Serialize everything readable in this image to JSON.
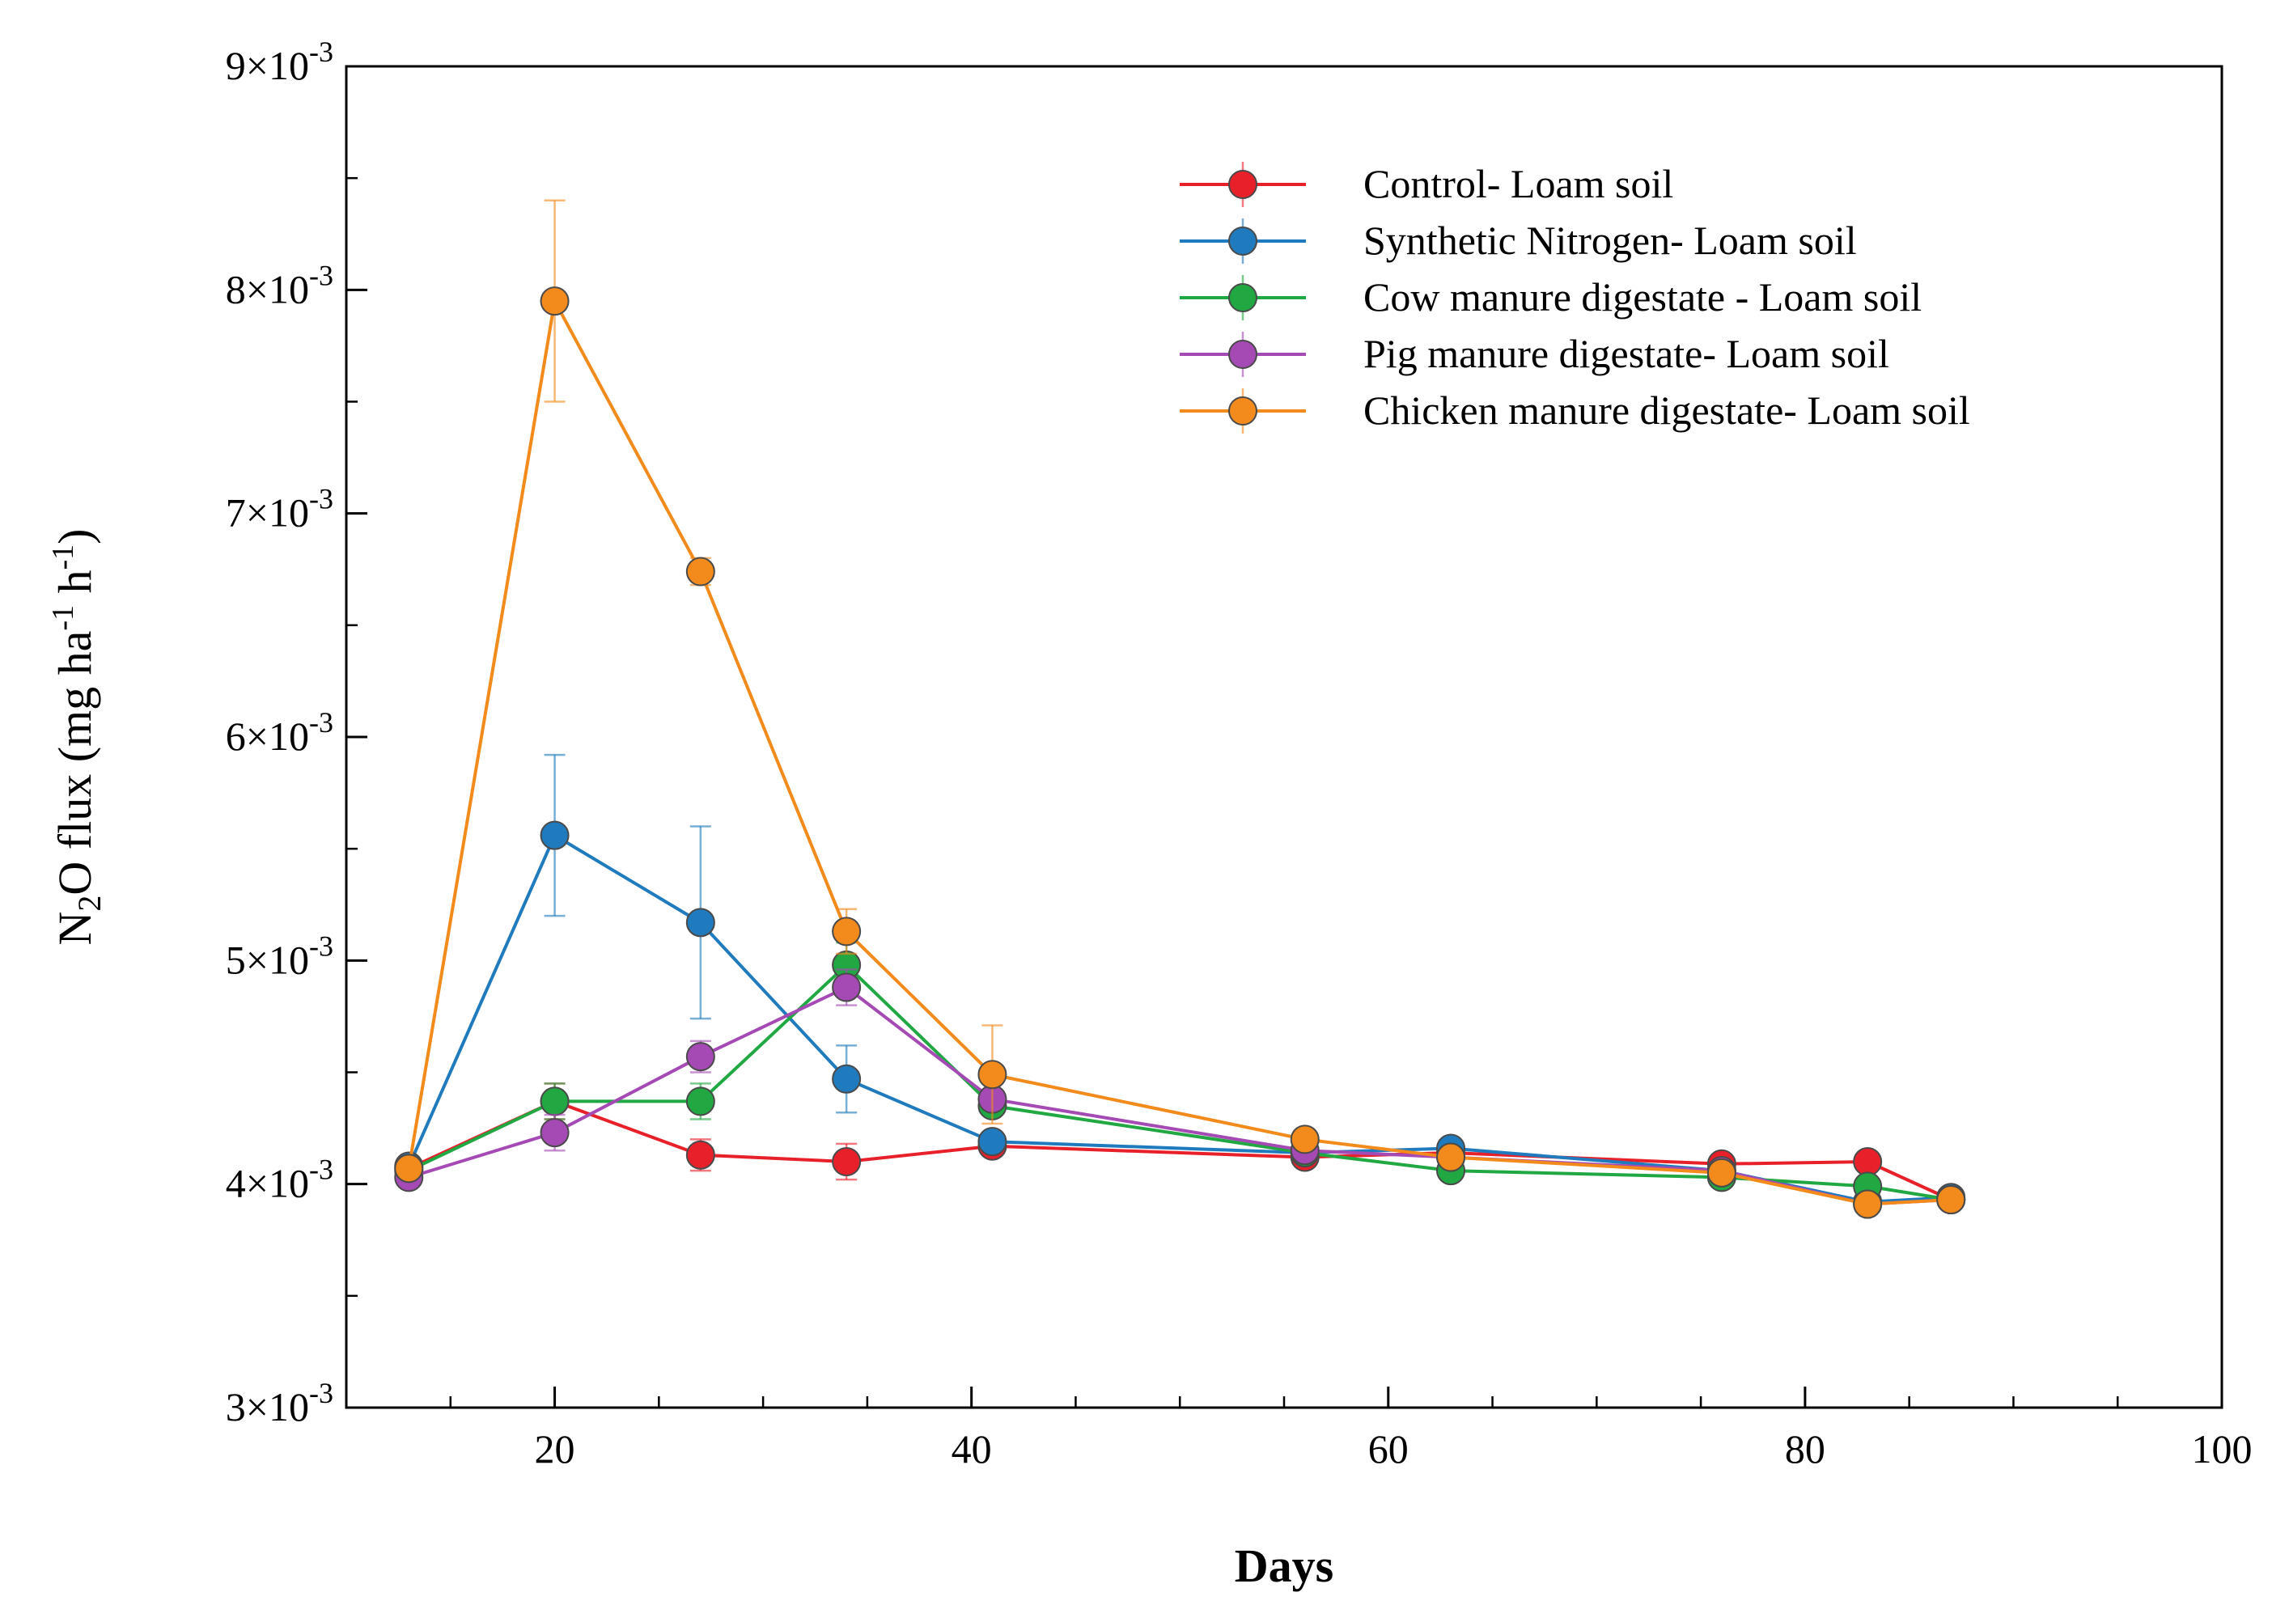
{
  "chart_data": {
    "type": "line",
    "title": "",
    "xlabel": "Days",
    "ylabel": "N2O flux (mg ha-1 h-1)",
    "ylabel_parts": {
      "n": "N",
      "sub2": "2",
      "o_flux": "O flux (mg ha",
      "sup1": "-1",
      "h": " h",
      "sup2": "-1",
      "close": ")"
    },
    "xlim": [
      10,
      100
    ],
    "ylim": [
      0.003,
      0.009
    ],
    "x_ticks": [
      20,
      40,
      60,
      80,
      100
    ],
    "x_tick_labels": [
      "20",
      "40",
      "60",
      "80",
      "100"
    ],
    "x_minor_ticks": [
      10,
      15,
      25,
      30,
      35,
      45,
      50,
      55,
      65,
      70,
      75,
      85,
      90,
      95
    ],
    "y_ticks": [
      0.003,
      0.004,
      0.005,
      0.006,
      0.007,
      0.008,
      0.009
    ],
    "y_tick_mantissas": [
      "3",
      "4",
      "5",
      "6",
      "7",
      "8",
      "9"
    ],
    "y_tick_base": "×10",
    "y_tick_exponent": "-3",
    "y_minor_ticks": [
      0.0035,
      0.0045,
      0.0055,
      0.0065,
      0.0075,
      0.0085
    ],
    "x": [
      13,
      20,
      27,
      34,
      41,
      56,
      63,
      76,
      83,
      87
    ],
    "legend_position": "top-right",
    "series": [
      {
        "name": "Control- Loam soil",
        "color": "#e8202a",
        "values": [
          0.00407,
          0.00437,
          0.00413,
          0.0041,
          0.00417,
          0.00412,
          0.00414,
          0.00409,
          0.0041,
          0.00393
        ],
        "errors": [
          5e-05,
          8e-05,
          7e-05,
          8e-05,
          4e-05,
          3e-05,
          3e-05,
          3e-05,
          3e-05,
          2e-05
        ]
      },
      {
        "name": "Synthetic Nitrogen- Loam soil",
        "color": "#1f7bbd",
        "values": [
          0.00408,
          0.00556,
          0.00517,
          0.00447,
          0.00419,
          0.00414,
          0.00416,
          0.00406,
          0.00392,
          0.00394
        ],
        "errors": [
          4e-05,
          0.00036,
          0.00043,
          0.00015,
          4e-05,
          3e-05,
          3e-05,
          3e-05,
          3e-05,
          2e-05
        ]
      },
      {
        "name": "Cow manure digestate - Loam soil",
        "color": "#21a843",
        "values": [
          0.00406,
          0.00437,
          0.00437,
          0.00498,
          0.00435,
          0.00414,
          0.00406,
          0.00403,
          0.00399,
          0.00393
        ],
        "errors": [
          4e-05,
          8e-05,
          8e-05,
          0.0001,
          4e-05,
          3e-05,
          3e-05,
          3e-05,
          3e-05,
          2e-05
        ]
      },
      {
        "name": "Pig manure digestate- Loam soil",
        "color": "#a54ab4",
        "values": [
          0.00403,
          0.00423,
          0.00457,
          0.00488,
          0.00438,
          0.00415,
          0.00412,
          0.00406,
          0.00391,
          0.00393
        ],
        "errors": [
          4e-05,
          8e-05,
          7e-05,
          8e-05,
          4e-05,
          3e-05,
          3e-05,
          3e-05,
          3e-05,
          2e-05
        ]
      },
      {
        "name": "Chicken manure digestate- Loam soil",
        "color": "#f28a1c",
        "values": [
          0.00407,
          0.00795,
          0.00674,
          0.00513,
          0.00449,
          0.0042,
          0.00412,
          0.00405,
          0.00391,
          0.00393
        ],
        "errors": [
          4e-05,
          0.00045,
          6e-05,
          0.0001,
          0.00022,
          3e-05,
          3e-05,
          3e-05,
          3e-05,
          2e-05
        ]
      }
    ]
  }
}
